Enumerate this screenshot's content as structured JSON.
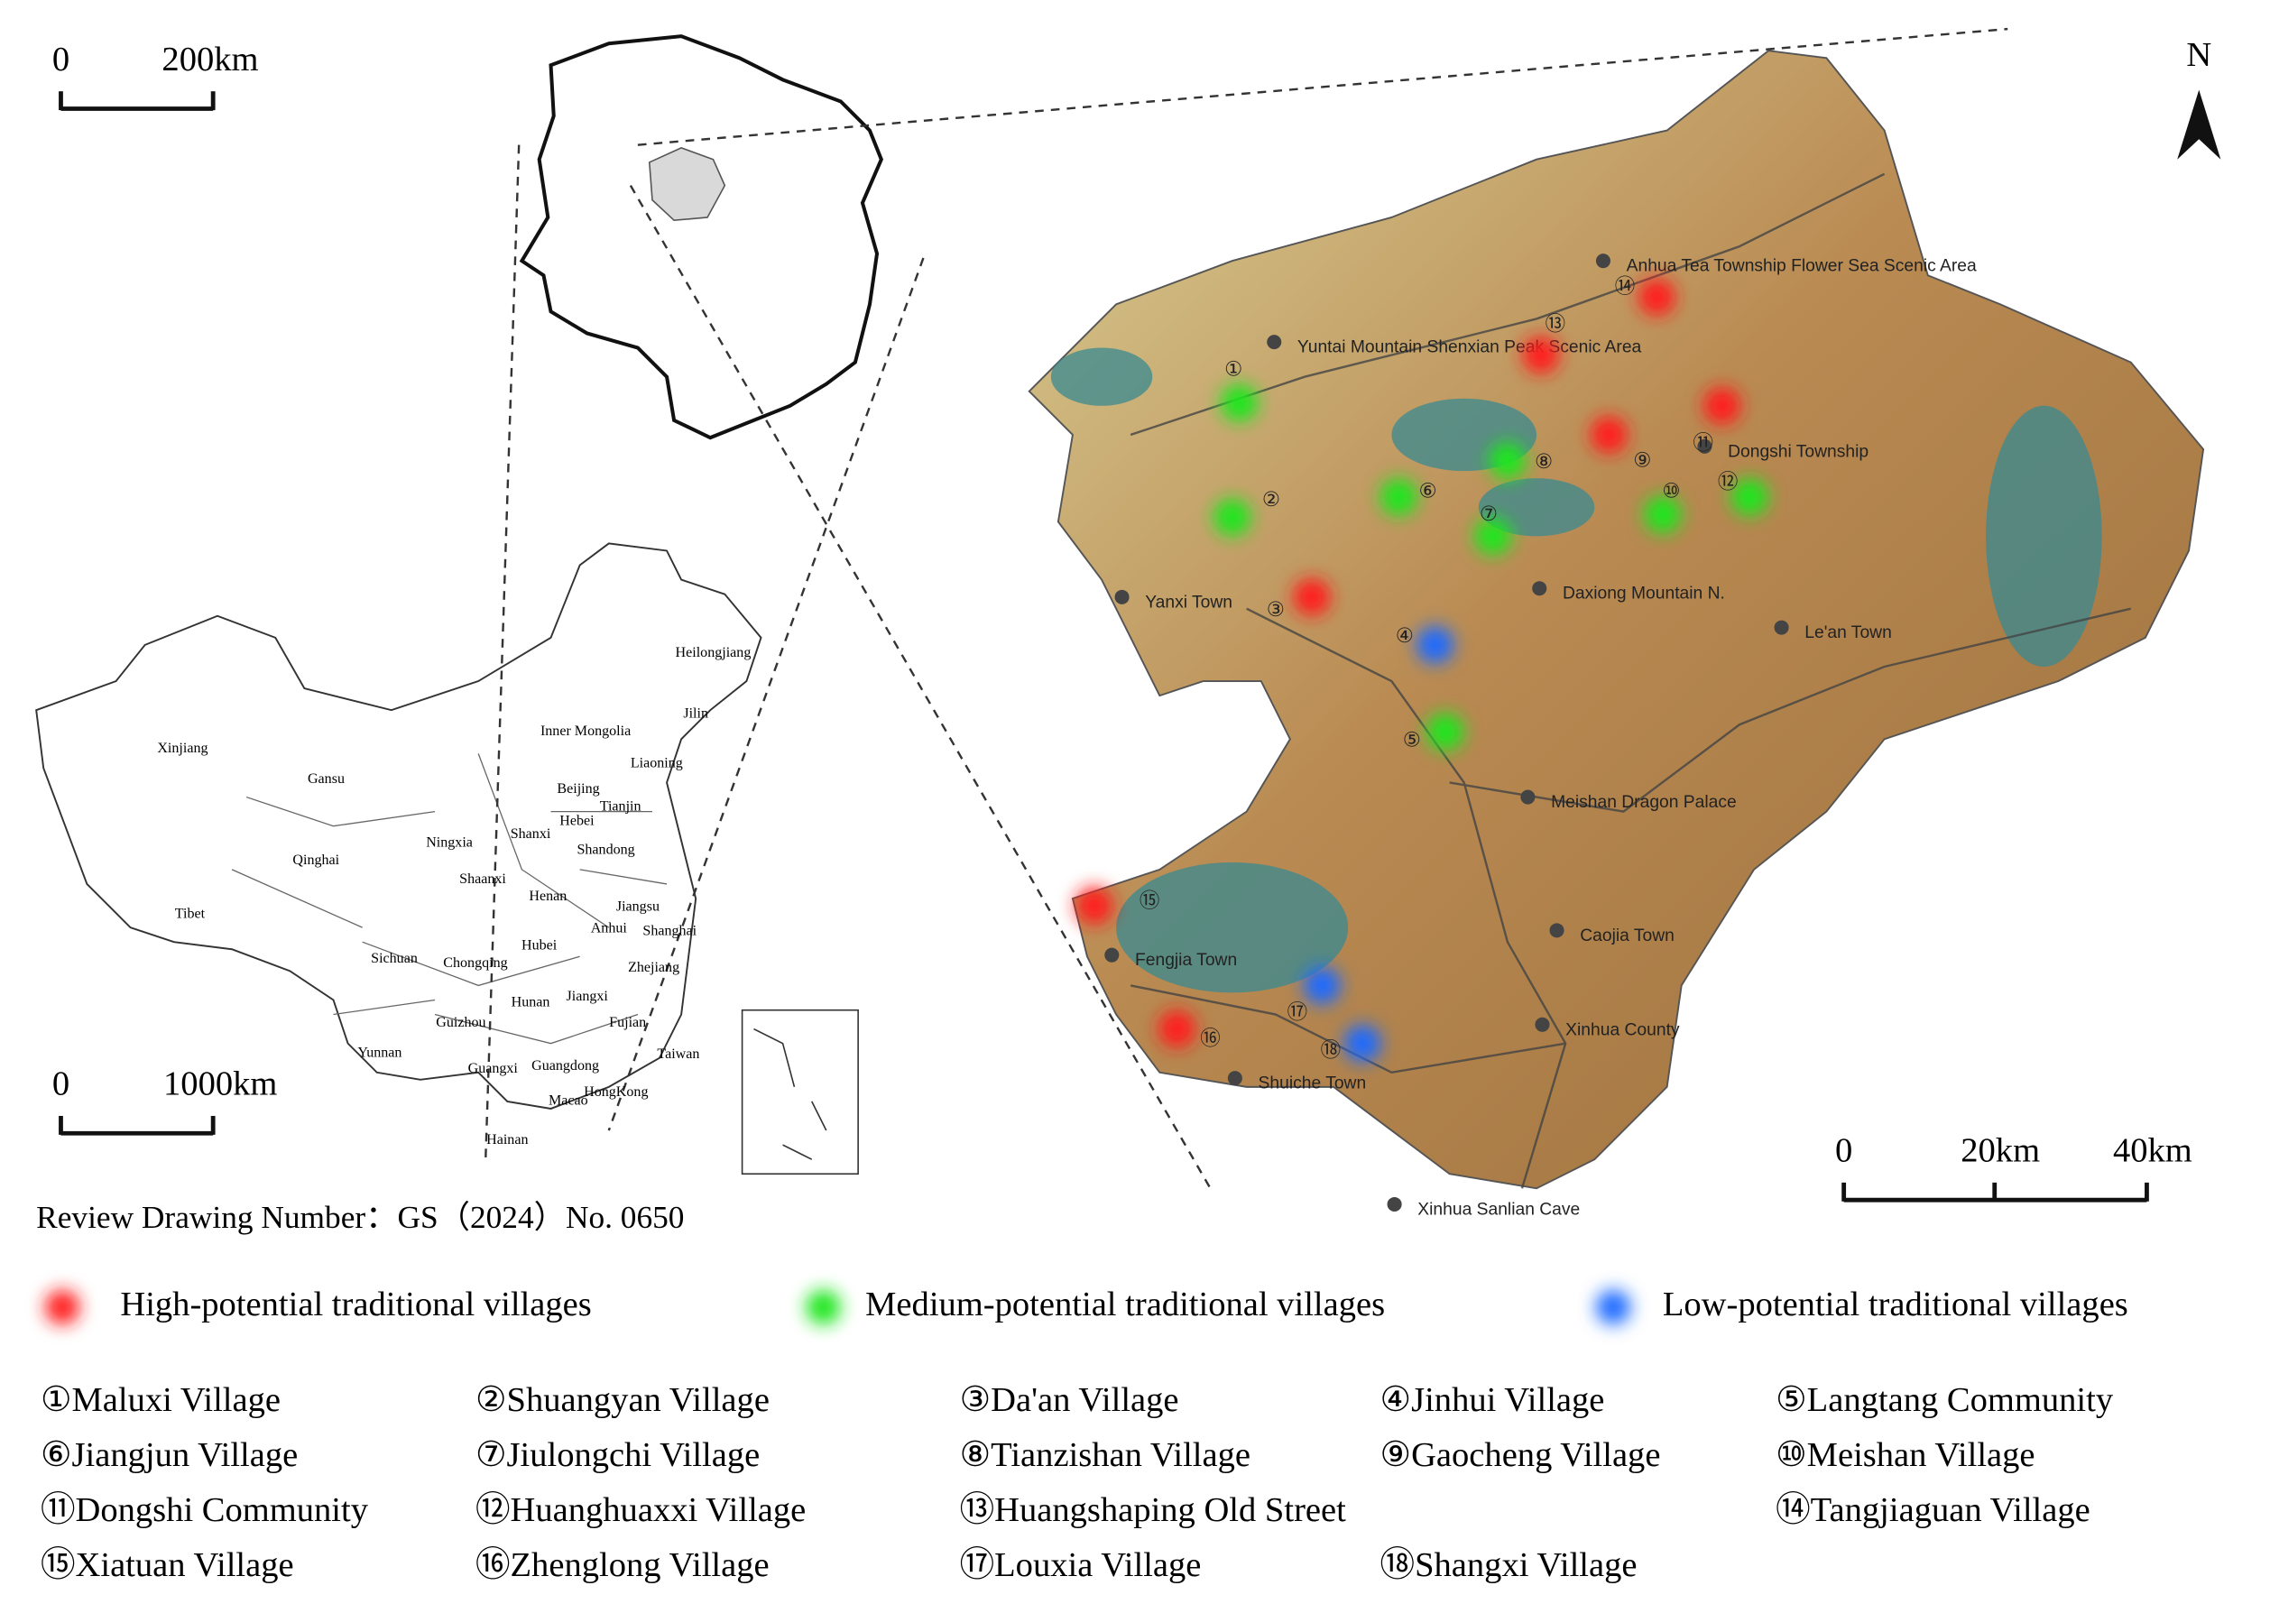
{
  "scale_bars": [
    {
      "labels": [
        "0",
        "200km"
      ]
    },
    {
      "labels": [
        "0",
        "1000km"
      ]
    },
    {
      "labels": [
        "0",
        "20km",
        "40km"
      ]
    }
  ],
  "north": "N",
  "china_labels": [
    "Xinjiang",
    "Gansu",
    "Qinghai",
    "Tibet",
    "Sichuan",
    "Yunnan",
    "Heilongjiang",
    "Jilin",
    "Inner Mongolia",
    "Liaoning",
    "Beijing",
    "Tianjin",
    "Hebei",
    "Ningxia",
    "Shanxi",
    "Shandong",
    "Shaanxi",
    "Henan",
    "Jiangsu",
    "Shanghai",
    "Anhui",
    "Hubei",
    "Chongqing",
    "Zhejiang",
    "Hunan",
    "Jiangxi",
    "Guizhou",
    "Fujian",
    "Taiwan",
    "Guangxi",
    "Guangdong",
    "HongKong",
    "Macao",
    "Hainan"
  ],
  "map_labels": [
    "Anhua Tea Township Flower Sea Scenic Area",
    "Yuntai Mountain Shenxian Peak Scenic Area",
    "Dongshi Township",
    "Daxiong Mountain N.",
    "Yanxi Town",
    "Le'an Town",
    "Meishan Dragon Palace",
    "Caojia Town",
    "Fengjia Town",
    "Xinhua County",
    "Shuiche Town",
    "Xinhua Sanlian Cave"
  ],
  "review": "Review Drawing Number：GS（2024）No. 0650",
  "legend": [
    {
      "label": "High-potential traditional villages",
      "color": "#ff1a1a"
    },
    {
      "label": "Medium-potential traditional villages",
      "color": "#1ee61e"
    },
    {
      "label": "Low-potential traditional villages",
      "color": "#1a6bff"
    }
  ],
  "villages": [
    {
      "marker": "①",
      "name": "Maluxi Village",
      "color": "#1ee61e"
    },
    {
      "marker": "②",
      "name": "Shuangyan Village",
      "color": "#1ee61e"
    },
    {
      "marker": "③",
      "name": "Da'an Village",
      "color": "#ff1a1a"
    },
    {
      "marker": "④",
      "name": "Jinhui Village",
      "color": "#1a6bff"
    },
    {
      "marker": "⑤",
      "name": "Langtang Community",
      "color": "#1ee61e"
    },
    {
      "marker": "⑥",
      "name": "Jiangjun Village",
      "color": "#1ee61e"
    },
    {
      "marker": "⑦",
      "name": "Jiulongchi Village",
      "color": "#1ee61e"
    },
    {
      "marker": "⑧",
      "name": "Tianzishan Village",
      "color": "#1ee61e"
    },
    {
      "marker": "⑨",
      "name": "Gaocheng Village",
      "color": "#ff1a1a"
    },
    {
      "marker": "⑩",
      "name": "Meishan Village",
      "color": "#1ee61e"
    },
    {
      "marker": "⑪",
      "name": "Dongshi Community",
      "color": "#ff1a1a"
    },
    {
      "marker": "⑫",
      "name": "Huanghuaxxi Village",
      "color": "#1ee61e"
    },
    {
      "marker": "⑬",
      "name": "Huangshaping Old Street",
      "color": "#ff1a1a"
    },
    {
      "marker": "⑭",
      "name": "Tangjiaguan Village",
      "color": "#ff1a1a"
    },
    {
      "marker": "⑮",
      "name": "Xiatuan Village",
      "color": "#ff1a1a"
    },
    {
      "marker": "⑯",
      "name": "Zhenglong Village",
      "color": "#ff1a1a"
    },
    {
      "marker": "⑰",
      "name": "Louxia Village",
      "color": "#1a6bff"
    },
    {
      "marker": "⑱",
      "name": "Shangxi Village",
      "color": "#1a6bff"
    }
  ]
}
